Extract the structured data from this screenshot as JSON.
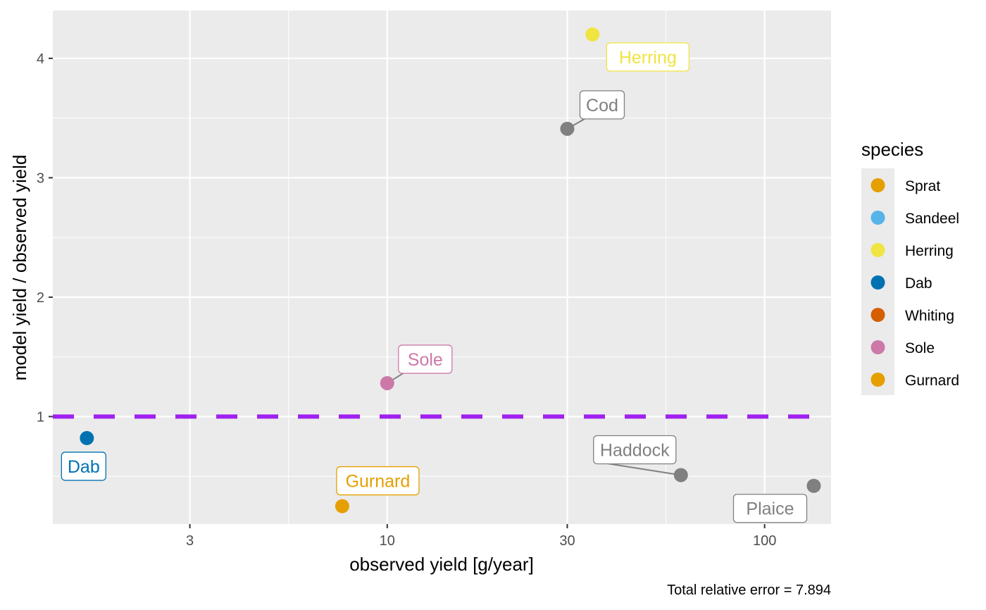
{
  "chart_data": {
    "type": "scatter",
    "title": "",
    "xlabel": "observed yield [g/year]",
    "ylabel": "model yield / observed yield",
    "x_scale": "log10",
    "xlim": [
      1.3,
      150
    ],
    "ylim": [
      0.1,
      4.4
    ],
    "x_ticks": [
      3,
      10,
      30,
      100
    ],
    "x_tick_labels": [
      "3",
      "10",
      "30",
      "100"
    ],
    "x_minor_ticks": [
      5.4772,
      54.772
    ],
    "y_ticks": [
      1,
      2,
      3,
      4
    ],
    "y_tick_labels": [
      "1",
      "2",
      "3",
      "4"
    ],
    "y_minor_ticks": [
      0.5,
      1.5,
      2.5,
      3.5
    ],
    "grid": true,
    "reference_line": {
      "y": 1,
      "style": "dashed",
      "color": "#A020F0"
    },
    "points": [
      {
        "label": "Herring",
        "x": 35,
        "y": 4.2,
        "color": "#F0E442"
      },
      {
        "label": "Cod",
        "x": 30,
        "y": 3.41,
        "color": "#808080"
      },
      {
        "label": "Sole",
        "x": 10,
        "y": 1.28,
        "color": "#CC79A7"
      },
      {
        "label": "Dab",
        "x": 1.6,
        "y": 0.82,
        "color": "#0072B2"
      },
      {
        "label": "Gurnard",
        "x": 7.6,
        "y": 0.25,
        "color": "#E69F00"
      },
      {
        "label": "Haddock",
        "x": 60,
        "y": 0.51,
        "color": "#808080"
      },
      {
        "label": "Plaice",
        "x": 135,
        "y": 0.42,
        "color": "#808080"
      }
    ],
    "legend": {
      "title": "species",
      "position": "right",
      "entries": [
        {
          "name": "Sprat",
          "color": "#E69F00"
        },
        {
          "name": "Sandeel",
          "color": "#56B4E9"
        },
        {
          "name": "Herring",
          "color": "#F0E442"
        },
        {
          "name": "Dab",
          "color": "#0072B2"
        },
        {
          "name": "Whiting",
          "color": "#D55E00"
        },
        {
          "name": "Sole",
          "color": "#CC79A7"
        },
        {
          "name": "Gurnard",
          "color": "#E69F00"
        }
      ]
    },
    "caption": "Total relative error = 7.894"
  }
}
